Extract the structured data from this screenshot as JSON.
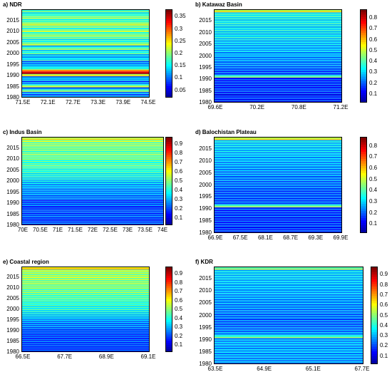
{
  "colormap": [
    "#00008f",
    "#0000ff",
    "#0080ff",
    "#00ffff",
    "#80ff80",
    "#ffff00",
    "#ff8000",
    "#ff0000",
    "#800000"
  ],
  "chart_data": [
    {
      "type": "heatmap",
      "title": "a) NDR",
      "xticks": [
        "71.5E",
        "72.1E",
        "72.7E",
        "73.3E",
        "73.9E",
        "74.5E"
      ],
      "yticks": [
        "2015",
        "2010",
        "2005",
        "2000",
        "1995",
        "1990",
        "1985",
        "1980"
      ],
      "year_range": [
        1980,
        2019
      ],
      "colorbar_ticks": [
        "0.35",
        "0.3",
        "0.25",
        "0.2",
        "0.15",
        "0.1",
        "0.05"
      ],
      "colorbar_range": [
        0.02,
        0.38
      ],
      "row_values": [
        0.12,
        0.08,
        0.1,
        0.18,
        0.09,
        0.2,
        0.11,
        0.08,
        0.12,
        0.1,
        0.22,
        0.35,
        0.28,
        0.15,
        0.12,
        0.1,
        0.09,
        0.14,
        0.11,
        0.12,
        0.16,
        0.13,
        0.18,
        0.12,
        0.2,
        0.15,
        0.14,
        0.17,
        0.19,
        0.16,
        0.2,
        0.15,
        0.18,
        0.21,
        0.17,
        0.15,
        0.19,
        0.16,
        0.14,
        0.17
      ]
    },
    {
      "type": "heatmap",
      "title": "b) Katawaz Basin",
      "xticks": [
        "69.6E",
        "70.2E",
        "70.8E",
        "71.2E"
      ],
      "yticks": [
        "2015",
        "2010",
        "2005",
        "2000",
        "1995",
        "1990",
        "1985",
        "1980"
      ],
      "year_range": [
        1980,
        2019
      ],
      "colorbar_ticks": [
        "0.8",
        "0.7",
        "0.6",
        "0.5",
        "0.4",
        "0.3",
        "0.2",
        "0.1"
      ],
      "colorbar_range": [
        0.02,
        0.88
      ],
      "row_values": [
        0.1,
        0.12,
        0.14,
        0.1,
        0.12,
        0.15,
        0.13,
        0.12,
        0.14,
        0.13,
        0.12,
        0.38,
        0.16,
        0.15,
        0.17,
        0.18,
        0.2,
        0.19,
        0.22,
        0.2,
        0.24,
        0.22,
        0.25,
        0.23,
        0.24,
        0.26,
        0.25,
        0.27,
        0.3,
        0.26,
        0.28,
        0.3,
        0.27,
        0.29,
        0.31,
        0.28,
        0.3,
        0.32,
        0.3,
        0.5
      ]
    },
    {
      "type": "heatmap",
      "title": "c) Indus Basin",
      "xticks": [
        "70E",
        "70.5E",
        "71E",
        "71.5E",
        "72E",
        "72.5E",
        "73E",
        "73.5E",
        "74E"
      ],
      "yticks": [
        "2015",
        "2010",
        "2005",
        "2000",
        "1995",
        "1990",
        "1985",
        "1980"
      ],
      "year_range": [
        1980,
        2019
      ],
      "colorbar_ticks": [
        "0.9",
        "0.8",
        "0.7",
        "0.6",
        "0.5",
        "0.4",
        "0.3",
        "0.2",
        "0.1"
      ],
      "colorbar_range": [
        0.02,
        0.98
      ],
      "row_values": [
        0.15,
        0.18,
        0.14,
        0.16,
        0.2,
        0.15,
        0.18,
        0.16,
        0.14,
        0.2,
        0.17,
        0.15,
        0.22,
        0.2,
        0.24,
        0.23,
        0.22,
        0.26,
        0.25,
        0.28,
        0.3,
        0.32,
        0.35,
        0.34,
        0.38,
        0.36,
        0.4,
        0.42,
        0.38,
        0.4,
        0.44,
        0.42,
        0.46,
        0.4,
        0.45,
        0.43,
        0.47,
        0.44,
        0.5,
        0.55
      ]
    },
    {
      "type": "heatmap",
      "title": "d) Balochistan Plateau",
      "xticks": [
        "66.9E",
        "67.5E",
        "68.1E",
        "68.7E",
        "69.3E",
        "69.9E"
      ],
      "yticks": [
        "2015",
        "2010",
        "2005",
        "2000",
        "1995",
        "1990",
        "1985",
        "1980"
      ],
      "year_range": [
        1980,
        2019
      ],
      "colorbar_ticks": [
        "0.8",
        "0.7",
        "0.6",
        "0.5",
        "0.4",
        "0.3",
        "0.2",
        "0.1"
      ],
      "colorbar_range": [
        0.02,
        0.88
      ],
      "row_values": [
        0.1,
        0.14,
        0.12,
        0.15,
        0.13,
        0.14,
        0.12,
        0.15,
        0.14,
        0.13,
        0.15,
        0.4,
        0.17,
        0.16,
        0.15,
        0.17,
        0.16,
        0.15,
        0.17,
        0.18,
        0.19,
        0.18,
        0.2,
        0.19,
        0.21,
        0.2,
        0.22,
        0.21,
        0.23,
        0.22,
        0.24,
        0.23,
        0.25,
        0.24,
        0.26,
        0.25,
        0.27,
        0.26,
        0.28,
        0.5
      ]
    },
    {
      "type": "heatmap",
      "title": "e) Coastal region",
      "xticks": [
        "66.5E",
        "67.7E",
        "68.9E",
        "69.1E"
      ],
      "yticks": [
        "2015",
        "2010",
        "2005",
        "2000",
        "1995",
        "1990",
        "1985",
        "1980"
      ],
      "year_range": [
        1980,
        2019
      ],
      "colorbar_ticks": [
        "0.9",
        "0.8",
        "0.7",
        "0.6",
        "0.5",
        "0.4",
        "0.3",
        "0.2",
        "0.1"
      ],
      "colorbar_range": [
        0.02,
        0.98
      ],
      "row_values": [
        0.14,
        0.16,
        0.15,
        0.17,
        0.16,
        0.18,
        0.15,
        0.17,
        0.16,
        0.18,
        0.17,
        0.2,
        0.22,
        0.21,
        0.23,
        0.25,
        0.28,
        0.3,
        0.32,
        0.34,
        0.36,
        0.35,
        0.38,
        0.37,
        0.4,
        0.42,
        0.4,
        0.43,
        0.45,
        0.42,
        0.46,
        0.44,
        0.48,
        0.45,
        0.47,
        0.5,
        0.46,
        0.48,
        0.5,
        0.62
      ]
    },
    {
      "type": "heatmap",
      "title": "f) KDR",
      "xticks": [
        "63.5E",
        "64.9E",
        "65.1E",
        "67.7E"
      ],
      "yticks": [
        "2015",
        "2010",
        "2005",
        "2000",
        "1995",
        "1990",
        "1985",
        "1980"
      ],
      "year_range": [
        1980,
        2019
      ],
      "colorbar_ticks": [
        "0.9",
        "0.8",
        "0.7",
        "0.6",
        "0.5",
        "0.4",
        "0.3",
        "0.2",
        "0.1"
      ],
      "colorbar_range": [
        0.02,
        0.98
      ],
      "row_values": [
        0.22,
        0.24,
        0.23,
        0.25,
        0.24,
        0.26,
        0.25,
        0.24,
        0.26,
        0.25,
        0.24,
        0.42,
        0.24,
        0.22,
        0.21,
        0.2,
        0.19,
        0.2,
        0.19,
        0.21,
        0.2,
        0.22,
        0.21,
        0.23,
        0.22,
        0.24,
        0.23,
        0.25,
        0.24,
        0.26,
        0.25,
        0.27,
        0.26,
        0.28,
        0.27,
        0.29,
        0.28,
        0.3,
        0.29,
        0.45
      ]
    }
  ]
}
